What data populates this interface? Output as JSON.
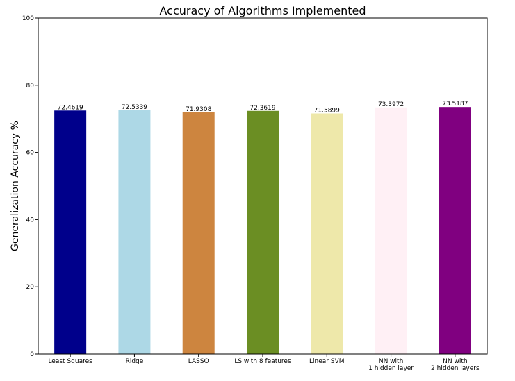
{
  "chart_data": {
    "type": "bar",
    "title": "Accuracy of Algorithms Implemented",
    "xlabel": "",
    "ylabel": "Generalization Accuracy %",
    "ylim": [
      0,
      100
    ],
    "yticks": [
      0,
      20,
      40,
      60,
      80,
      100
    ],
    "grid": false,
    "categories": [
      [
        "Least Squares"
      ],
      [
        "Ridge"
      ],
      [
        "LASSO"
      ],
      [
        "LS with 8 features"
      ],
      [
        "Linear SVM"
      ],
      [
        "NN with",
        "1 hidden layer"
      ],
      [
        "NN with",
        "2 hidden layers"
      ]
    ],
    "values": [
      72.4619,
      72.5339,
      71.9308,
      72.3619,
      71.5899,
      73.3972,
      73.5187
    ],
    "value_labels": [
      "72.4619",
      "72.5339",
      "71.9308",
      "72.3619",
      "71.5899",
      "73.3972",
      "73.5187"
    ],
    "colors": [
      "#00008b",
      "#add8e6",
      "#cd853f",
      "#6b8e23",
      "#eee8aa",
      "#fff0f5",
      "#800080"
    ]
  }
}
